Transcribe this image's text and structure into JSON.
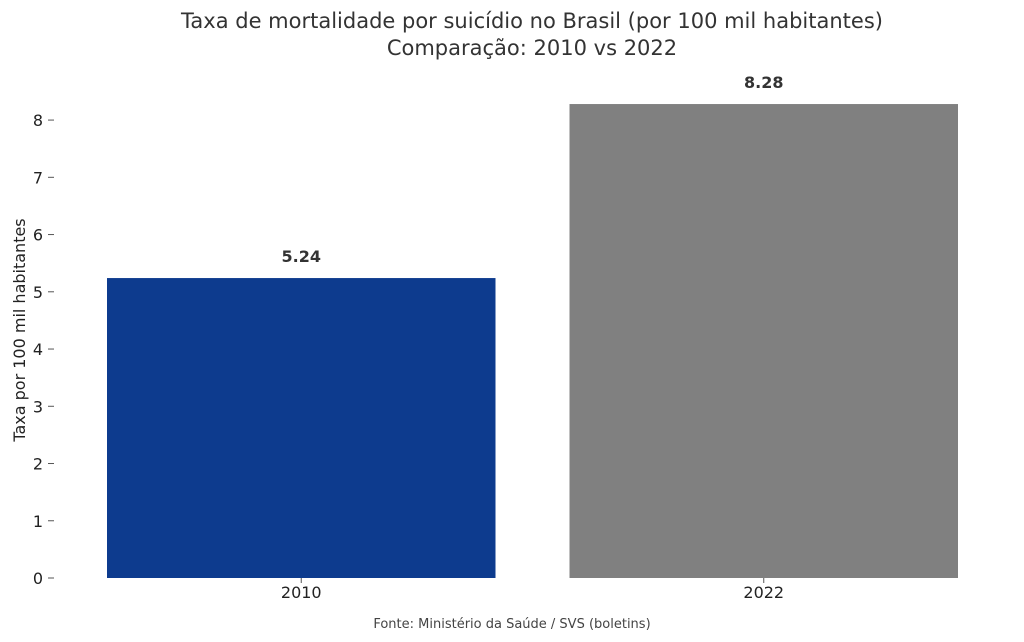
{
  "chart_data": {
    "type": "bar",
    "title": "Taxa de mortalidade por suicídio no Brasil (por 100 mil habitantes)",
    "subtitle": "Comparação: 2010 vs 2022",
    "categories": [
      "2010",
      "2022"
    ],
    "values": [
      5.24,
      8.28
    ],
    "value_labels": [
      "5.24",
      "8.28"
    ],
    "colors": [
      "#0d3b8e",
      "#808080"
    ],
    "ylabel": "Taxa por 100 mil habitantes",
    "xlabel": "",
    "ylim": [
      0,
      8.7
    ],
    "yticks": [
      0,
      1,
      2,
      3,
      4,
      5,
      6,
      7,
      8
    ],
    "grid": false,
    "source": "Fonte: Ministério da Saúde / SVS (boletins)"
  }
}
